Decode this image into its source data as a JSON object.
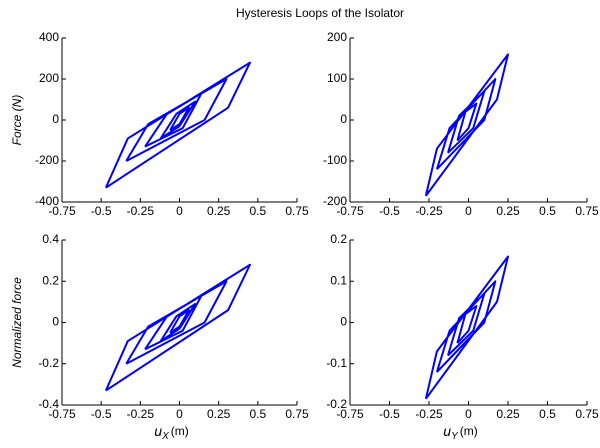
{
  "title": "Hysteresis Loops of the Isolator",
  "chart_data": [
    {
      "type": "line",
      "ylabel": "Force (N)",
      "color": "#0000ff",
      "xlim": [
        -0.75,
        0.75
      ],
      "xticks": [
        -0.75,
        -0.5,
        -0.25,
        0,
        0.25,
        0.5,
        0.75
      ],
      "ylim": [
        -400,
        400
      ],
      "yticks": [
        -400,
        -200,
        0,
        200,
        400
      ],
      "x": [
        -0.47,
        -0.33,
        0.45,
        0.31,
        -0.47,
        null,
        -0.34,
        -0.2,
        0.3,
        0.16,
        -0.34,
        null,
        -0.22,
        -0.08,
        0.14,
        0.02,
        -0.22,
        null,
        -0.12,
        -0.02,
        0.1,
        0.0,
        -0.12,
        null,
        -0.06,
        0.0,
        0.06,
        0.0,
        -0.06
      ],
      "values": [
        -330,
        -90,
        280,
        60,
        -330,
        null,
        -200,
        -20,
        200,
        0,
        -200,
        null,
        -130,
        30,
        130,
        -40,
        -130,
        null,
        -90,
        30,
        90,
        -30,
        -90,
        null,
        -50,
        30,
        60,
        -20,
        -50
      ]
    },
    {
      "type": "line",
      "color": "#0000ff",
      "xlim": [
        -0.75,
        0.75
      ],
      "xticks": [
        -0.75,
        -0.5,
        -0.25,
        0,
        0.25,
        0.5,
        0.75
      ],
      "ylim": [
        -200,
        200
      ],
      "yticks": [
        -200,
        -100,
        0,
        100,
        200
      ],
      "x": [
        -0.27,
        -0.2,
        0.25,
        0.18,
        -0.27,
        null,
        -0.2,
        -0.12,
        0.17,
        0.1,
        -0.2,
        null,
        -0.13,
        -0.06,
        0.1,
        0.03,
        -0.13,
        null,
        -0.07,
        -0.02,
        0.05,
        0.0,
        -0.07
      ],
      "values": [
        -185,
        -70,
        160,
        50,
        -185,
        null,
        -120,
        -20,
        100,
        0,
        -120,
        null,
        -80,
        10,
        70,
        -20,
        -80,
        null,
        -50,
        20,
        40,
        -20,
        -50
      ]
    },
    {
      "type": "line",
      "ylabel": "Normalized force",
      "color": "#0000ff",
      "xlabel": {
        "symbol": "u",
        "subscript": "X",
        "unit": "(m)"
      },
      "xlim": [
        -0.75,
        0.75
      ],
      "xticks": [
        -0.75,
        -0.5,
        -0.25,
        0,
        0.25,
        0.5,
        0.75
      ],
      "ylim": [
        -0.4,
        0.4
      ],
      "yticks": [
        -0.4,
        -0.2,
        0,
        0.2,
        0.4
      ],
      "x": [
        -0.47,
        -0.33,
        0.45,
        0.31,
        -0.47,
        null,
        -0.34,
        -0.2,
        0.3,
        0.16,
        -0.34,
        null,
        -0.22,
        -0.08,
        0.14,
        0.02,
        -0.22,
        null,
        -0.12,
        -0.02,
        0.1,
        0.0,
        -0.12,
        null,
        -0.06,
        0.0,
        0.06,
        0.0,
        -0.06
      ],
      "values": [
        -0.33,
        -0.09,
        0.28,
        0.06,
        -0.33,
        null,
        -0.2,
        -0.02,
        0.2,
        0,
        -0.2,
        null,
        -0.13,
        0.03,
        0.13,
        -0.04,
        -0.13,
        null,
        -0.09,
        0.03,
        0.09,
        -0.03,
        -0.09,
        null,
        -0.05,
        0.03,
        0.06,
        -0.02,
        -0.05
      ]
    },
    {
      "type": "line",
      "color": "#0000ff",
      "xlabel": {
        "symbol": "u",
        "subscript": "Y",
        "unit": "(m)"
      },
      "xlim": [
        -0.75,
        0.75
      ],
      "xticks": [
        -0.75,
        -0.5,
        -0.25,
        0,
        0.25,
        0.5,
        0.75
      ],
      "ylim": [
        -0.2,
        0.2
      ],
      "yticks": [
        -0.2,
        -0.1,
        0,
        0.1,
        0.2
      ],
      "x": [
        -0.27,
        -0.2,
        0.25,
        0.18,
        -0.27,
        null,
        -0.2,
        -0.12,
        0.17,
        0.1,
        -0.2,
        null,
        -0.13,
        -0.06,
        0.1,
        0.03,
        -0.13,
        null,
        -0.07,
        -0.02,
        0.05,
        0.0,
        -0.07
      ],
      "values": [
        -0.185,
        -0.07,
        0.16,
        0.05,
        -0.185,
        null,
        -0.12,
        -0.02,
        0.1,
        0,
        -0.12,
        null,
        -0.08,
        0.01,
        0.07,
        -0.02,
        -0.08,
        null,
        -0.05,
        0.02,
        0.04,
        -0.02,
        -0.05
      ]
    }
  ]
}
